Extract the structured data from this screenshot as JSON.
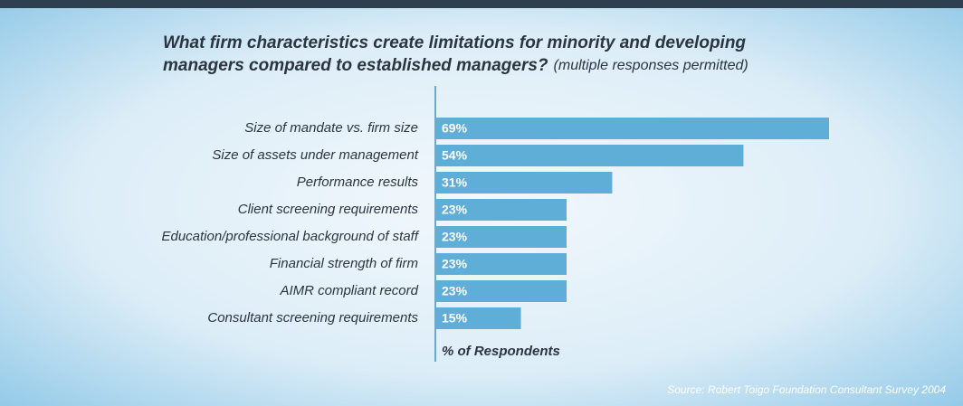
{
  "chart_data": {
    "type": "bar",
    "orientation": "horizontal",
    "title_lines": [
      "What firm characteristics create limitations for minority and developing",
      "managers compared to  established managers?"
    ],
    "subtitle": "(multiple responses permitted)",
    "categories": [
      "Size of mandate vs. firm size",
      "Size of assets under management",
      "Performance results",
      "Client screening requirements",
      "Education/professional background of staff",
      "Financial strength of firm",
      "AIMR compliant record",
      "Consultant screening requirements"
    ],
    "values": [
      69,
      54,
      31,
      23,
      23,
      23,
      23,
      15
    ],
    "value_labels": [
      "69%",
      "54%",
      "31%",
      "23%",
      "23%",
      "23%",
      "23%",
      "15%"
    ],
    "color": "#5eaed8",
    "x_label": "% of Respondents",
    "source": "Source: Robert Toigo Foundation Consultant Survey 2004"
  }
}
